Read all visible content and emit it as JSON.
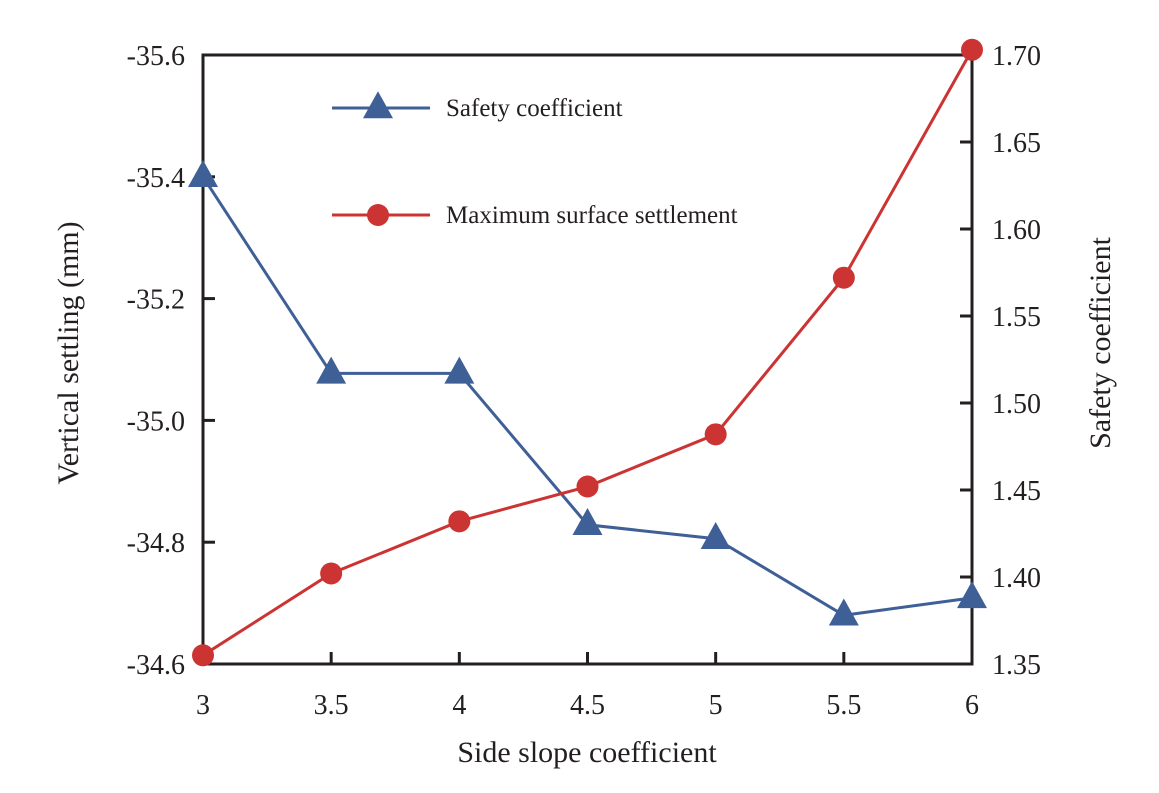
{
  "chart_data": {
    "type": "line",
    "x": [
      3,
      3.5,
      4,
      4.5,
      5,
      5.5,
      6
    ],
    "xlabel": "Side slope coefficient",
    "ylabel_left": "Vertical settling (mm)",
    "ylabel_right": "Safety coefficient",
    "xlim": [
      3,
      6
    ],
    "ylim_left": [
      -34.6,
      -35.6
    ],
    "ylim_right": [
      1.35,
      1.7
    ],
    "x_ticks": [
      "3",
      "3.5",
      "4",
      "4.5",
      "5",
      "5.5",
      "6"
    ],
    "y_ticks_left": [
      "-34.6",
      "-34.8",
      "-35.0",
      "-35.2",
      "-35.4",
      "-35.6"
    ],
    "y_ticks_right": [
      "1.35",
      "1.40",
      "1.45",
      "1.50",
      "1.55",
      "1.60",
      "1.65",
      "1.70"
    ],
    "grid": false,
    "legend_position": "top-center",
    "series": [
      {
        "name": "Safety coefficient",
        "axis": "right",
        "marker": "triangle",
        "color": "#3f5f97",
        "values": [
          1.63,
          1.517,
          1.517,
          1.43,
          1.422,
          1.378,
          1.388
        ]
      },
      {
        "name": "Maximum surface settlement",
        "axis": "right",
        "marker": "circle",
        "color": "#cc3333",
        "values": [
          1.355,
          1.402,
          1.432,
          1.452,
          1.482,
          1.572,
          1.703
        ]
      }
    ]
  }
}
